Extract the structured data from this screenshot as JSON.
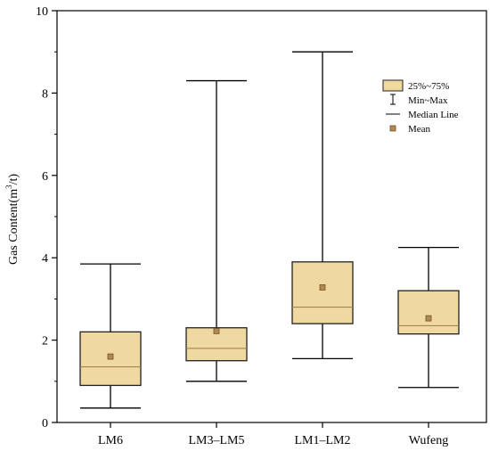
{
  "chart_data": {
    "type": "boxplot",
    "categories": [
      "LM6",
      "LM3–LM5",
      "LM1–LM2",
      "Wufeng"
    ],
    "boxes": [
      {
        "category": "LM6",
        "min": 0.35,
        "q1": 0.9,
        "median": 1.35,
        "q3": 2.2,
        "max": 3.85,
        "mean": 1.6
      },
      {
        "category": "LM3–LM5",
        "min": 1.0,
        "q1": 1.5,
        "median": 1.8,
        "q3": 2.3,
        "max": 8.3,
        "mean": 2.22
      },
      {
        "category": "LM1–LM2",
        "min": 1.55,
        "q1": 2.4,
        "median": 2.8,
        "q3": 3.9,
        "max": 9.0,
        "mean": 3.28
      },
      {
        "category": "Wufeng",
        "min": 0.85,
        "q1": 2.15,
        "median": 2.35,
        "q3": 3.2,
        "max": 4.25,
        "mean": 2.53
      }
    ],
    "ylabel_prefix": "Gas Content(m",
    "ylabel_sup": "3",
    "ylabel_suffix": "/t)",
    "ylim": [
      0,
      10
    ],
    "yticks": [
      "0",
      "2",
      "4",
      "6",
      "8",
      "10"
    ],
    "legend": {
      "position": "top-right",
      "items": [
        {
          "kind": "box",
          "label": "25%~75%"
        },
        {
          "kind": "range",
          "label": "Min~Max"
        },
        {
          "kind": "median",
          "label": "Median Line"
        },
        {
          "kind": "mean",
          "label": "Mean"
        }
      ]
    },
    "colors": {
      "box_fill": "#f0d9a0",
      "box_stroke": "#222222",
      "median_line": "#9a7a4a",
      "mean_fill": "#b08850",
      "mean_stroke": "#6e5430"
    }
  }
}
